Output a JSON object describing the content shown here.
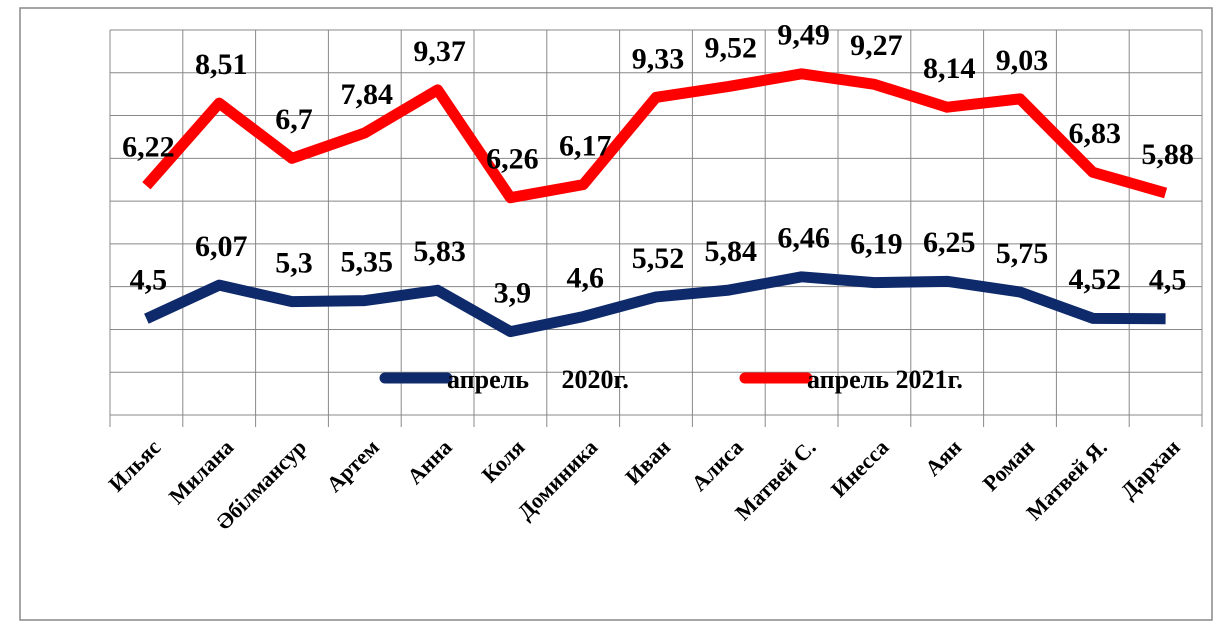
{
  "chart_data": {
    "type": "line",
    "stacked": true,
    "categories": [
      "Ильяс",
      "Милана",
      "Әбілмансур",
      "Артем",
      "Анна",
      "Коля",
      "Доминика",
      "Иван",
      "Алиса",
      "Матвей С.",
      "Инесса",
      "Аян",
      "Роман",
      "Матвей Я.",
      "Дархан"
    ],
    "series": [
      {
        "name": "апрель     2020г.",
        "color": "#0f2a6b",
        "values": [
          4.5,
          6.07,
          5.3,
          5.35,
          5.83,
          3.9,
          4.6,
          5.52,
          5.84,
          6.46,
          6.19,
          6.25,
          5.75,
          4.52,
          4.5
        ],
        "value_labels": [
          "4,5",
          "6,07",
          "5,3",
          "5,35",
          "5,83",
          "3,9",
          "4,6",
          "5,52",
          "5,84",
          "6,46",
          "6,19",
          "6,25",
          "5,75",
          "4,52",
          "4,5"
        ]
      },
      {
        "name": "апрель 2021г.",
        "color": "#ff0000",
        "values": [
          6.22,
          8.51,
          6.7,
          7.84,
          9.37,
          6.26,
          6.17,
          9.33,
          9.52,
          9.49,
          9.27,
          8.14,
          9.03,
          6.83,
          5.88
        ],
        "value_labels": [
          "6,22",
          "8,51",
          "6,7",
          "7,84",
          "9,37",
          "6,26",
          "6,17",
          "9,33",
          "9,52",
          "9,49",
          "9,27",
          "8,14",
          "9,03",
          "6,83",
          "5,88"
        ]
      }
    ],
    "ylim": [
      0,
      18
    ],
    "yticks": [
      0,
      2,
      4,
      6,
      8,
      10,
      12,
      14,
      16,
      18
    ],
    "grid": true
  }
}
